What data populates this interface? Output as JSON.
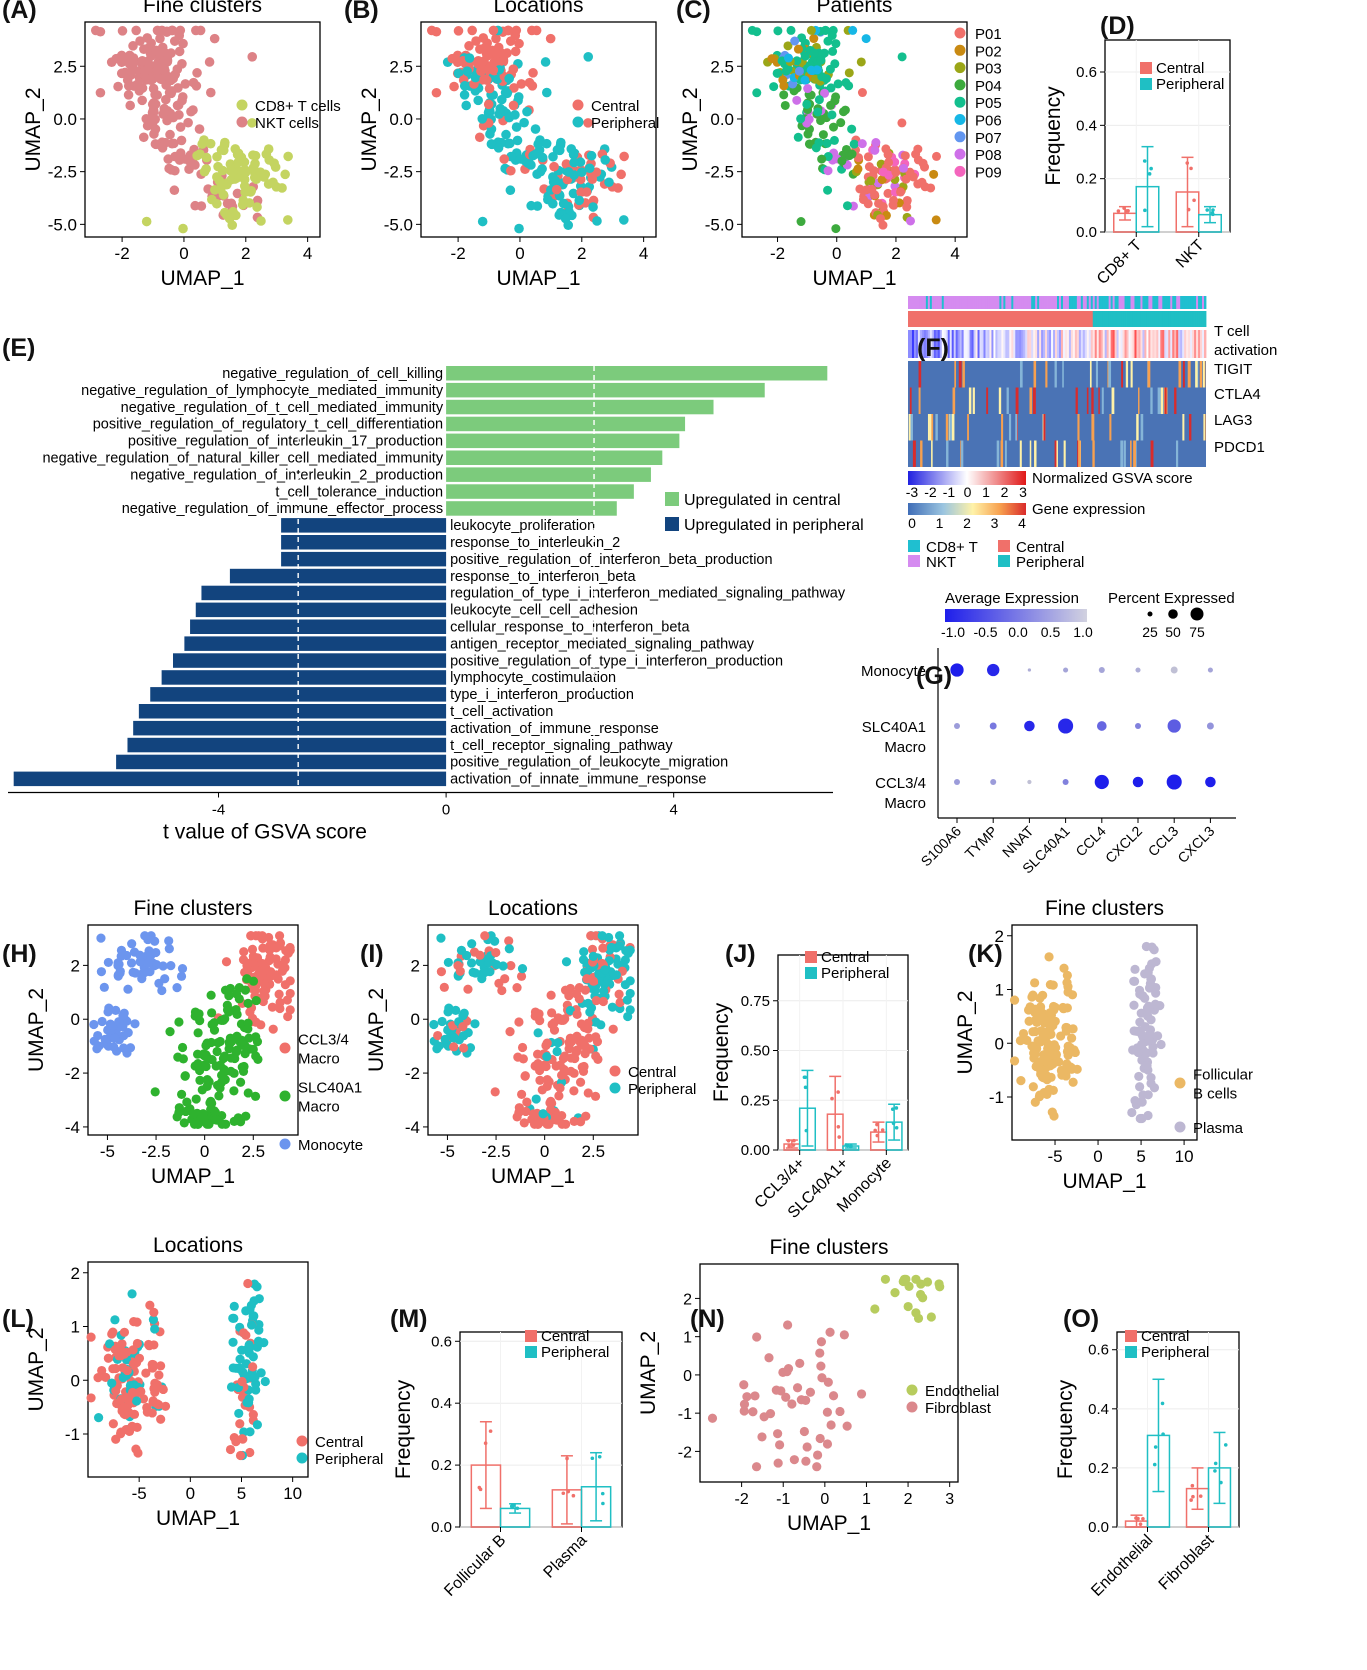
{
  "colors": {
    "central": "#F0706A",
    "peripheral": "#1FBFC4",
    "up_central": "#7CCB7C",
    "up_peripheral": "#12447E",
    "cd8": "#C4D461",
    "nkt": "#DD8286",
    "endo": "#B7CC5E",
    "fibro": "#DB888C",
    "follicular": "#EBB864",
    "plasma": "#BDB7D2",
    "ccl34": "#F0706A",
    "slc": "#2EB22E",
    "mono": "#6C95EE",
    "patients": [
      "#F0706A",
      "#C98A12",
      "#9BA617",
      "#3DAA3E",
      "#13BF8E",
      "#16B7E6",
      "#6296F0",
      "#CE70E9",
      "#F465BD"
    ]
  },
  "panel_labels": {
    "A": "(A)",
    "B": "(B)",
    "C": "(C)",
    "D": "(D)",
    "E": "(E)",
    "F": "(F)",
    "G": "(G)",
    "H": "(H)",
    "I": "(I)",
    "J": "(J)",
    "K": "(K)",
    "L": "(L)",
    "M": "(M)",
    "N": "(N)",
    "O": "(O)"
  },
  "chart_data": [
    {
      "panel": "A",
      "type": "scatter",
      "title": "Fine clusters",
      "xlabel": "UMAP_1",
      "ylabel": "UMAP_2",
      "xlim": [
        -3.2,
        4.4
      ],
      "ylim": [
        -5.6,
        4.6
      ],
      "xticks": [
        -2,
        0,
        2,
        4
      ],
      "yticks": [
        2.5,
        0.0,
        -2.5,
        -5.0
      ],
      "series": [
        {
          "name": "CD8+ T cells",
          "color_key": "cd8"
        },
        {
          "name": "NKT cells",
          "color_key": "nkt"
        }
      ],
      "legend": [
        "CD8+ T cells",
        "NKT cells"
      ]
    },
    {
      "panel": "B",
      "type": "scatter",
      "title": "Locations",
      "xlabel": "UMAP_1",
      "ylabel": "UMAP_2",
      "xlim": [
        -3.2,
        4.4
      ],
      "ylim": [
        -5.6,
        4.6
      ],
      "xticks": [
        -2,
        0,
        2,
        4
      ],
      "yticks": [
        2.5,
        0.0,
        -2.5,
        -5.0
      ],
      "legend": [
        "Central",
        "Peripheral"
      ]
    },
    {
      "panel": "C",
      "type": "scatter",
      "title": "Patients",
      "xlabel": "UMAP_1",
      "ylabel": "UMAP_2",
      "xlim": [
        -3.2,
        4.4
      ],
      "ylim": [
        -5.6,
        4.6
      ],
      "xticks": [
        -2,
        0,
        2,
        4
      ],
      "yticks": [
        2.5,
        0.0,
        -2.5,
        -5.0
      ],
      "legend": [
        "P01",
        "P02",
        "P03",
        "P04",
        "P05",
        "P06",
        "P07",
        "P08",
        "P09"
      ]
    },
    {
      "panel": "D",
      "type": "bar",
      "ylabel": "Frequency",
      "ylim": [
        0,
        0.72
      ],
      "yticks": [
        0.0,
        0.2,
        0.4,
        0.6
      ],
      "categories": [
        "CD8+ T",
        "NKT"
      ],
      "legend": [
        "Central",
        "Peripheral"
      ],
      "series": [
        {
          "name": "Central",
          "values": [
            0.07,
            0.15
          ],
          "err": [
            0.025,
            0.13
          ]
        },
        {
          "name": "Peripheral",
          "values": [
            0.17,
            0.065
          ],
          "err": [
            0.15,
            0.03
          ]
        }
      ]
    },
    {
      "panel": "E",
      "type": "bar",
      "orientation": "horizontal",
      "xlabel": "t value of GSVA score",
      "xlim": [
        -7.7,
        6.8
      ],
      "xticks": [
        -4,
        0,
        4
      ],
      "threshold": 2.6,
      "legend": [
        "Upregulated in central",
        "Upregulated in peripheral"
      ],
      "bars": [
        {
          "label": "negative_regulation_of_cell_killing",
          "value": 6.7
        },
        {
          "label": "negative_regulation_of_lymphocyte_mediated_immunity",
          "value": 5.6
        },
        {
          "label": "negative_regulation_of_t_cell_mediated_immunity",
          "value": 4.7
        },
        {
          "label": "positive_regulation_of_regulatory_t_cell_differentiation",
          "value": 4.2
        },
        {
          "label": "positive_regulation_of_interleukin_17_production",
          "value": 4.1
        },
        {
          "label": "negative_regulation_of_natural_killer_cell_mediated_immunity",
          "value": 3.8
        },
        {
          "label": "negative_regulation_of_interleukin_2_production",
          "value": 3.6
        },
        {
          "label": "t_cell_tolerance_induction",
          "value": 3.3
        },
        {
          "label": "negative_regulation_of_immune_effector_process",
          "value": 3.0
        },
        {
          "label": "leukocyte_proliferation",
          "value": -2.9
        },
        {
          "label": "response_to_interleukin_2",
          "value": -2.9
        },
        {
          "label": "positive_regulation_of_interferon_beta_production",
          "value": -2.9
        },
        {
          "label": "response_to_interferon_beta",
          "value": -3.8
        },
        {
          "label": "regulation_of_type_i_interferon_mediated_signaling_pathway",
          "value": -4.3
        },
        {
          "label": "leukocyte_cell_cell_adhesion",
          "value": -4.4
        },
        {
          "label": "cellular_response_to_interferon_beta",
          "value": -4.5
        },
        {
          "label": "antigen_receptor_mediated_signaling_pathway",
          "value": -4.6
        },
        {
          "label": "positive_regulation_of_type_i_interferon_production",
          "value": -4.8
        },
        {
          "label": "lymphocyte_costimulation",
          "value": -5.0
        },
        {
          "label": "type_i_interferon_production",
          "value": -5.2
        },
        {
          "label": "t_cell_activation",
          "value": -5.4
        },
        {
          "label": "activation_of_immune_response",
          "value": -5.5
        },
        {
          "label": "t_cell_receptor_signaling_pathway",
          "value": -5.6
        },
        {
          "label": "positive_regulation_of_leukocyte_migration",
          "value": -5.8
        },
        {
          "label": "activation_of_innate_immune_response",
          "value": -7.6
        }
      ]
    },
    {
      "panel": "F",
      "type": "heatmap",
      "rows": [
        "T cell\nactivation",
        "TIGIT",
        "CTLA4",
        "LAG3",
        "PDCD1"
      ],
      "legend_gsva": {
        "title": "Normalized GSVA score",
        "ticks": [
          "-3",
          "-2",
          "-1",
          "0",
          "1",
          "2",
          "3"
        ]
      },
      "legend_expr": {
        "title": "Gene expression",
        "ticks": [
          "0",
          "1",
          "2",
          "3",
          "4"
        ]
      },
      "legend_cells": [
        "CD8+ T",
        "NKT"
      ],
      "legend_loc": [
        "Central",
        "Peripheral"
      ]
    },
    {
      "panel": "G",
      "type": "scatter",
      "genes": [
        "S100A6",
        "TYMP",
        "NNAT",
        "SLC40A1",
        "CCL4",
        "CXCL2",
        "CCL3",
        "CXCL3"
      ],
      "groups": [
        "Monocyte",
        "SLC40A1\nMacro",
        "CCL3/4\nMacro"
      ],
      "legend_expr": {
        "title": "Average Expression",
        "ticks": [
          "-1.0",
          "-0.5",
          "0.0",
          "0.5",
          "1.0"
        ]
      },
      "legend_pct": {
        "title": "Percent Expressed",
        "ticks": [
          "25",
          "50",
          "75"
        ]
      },
      "avg_expression": [
        [
          -1.0,
          -0.9,
          0.6,
          0.5,
          0.5,
          0.6,
          0.8,
          0.5
        ],
        [
          0.4,
          0.0,
          -0.9,
          -0.9,
          -0.2,
          0.1,
          -0.3,
          0.3
        ],
        [
          0.4,
          0.4,
          0.8,
          0.1,
          -1.0,
          -1.0,
          -1.0,
          -1.0
        ]
      ],
      "pct_expressed": [
        [
          60,
          55,
          5,
          15,
          20,
          15,
          25,
          15
        ],
        [
          20,
          25,
          45,
          70,
          40,
          20,
          60,
          25
        ],
        [
          20,
          20,
          10,
          20,
          65,
          45,
          70,
          45
        ]
      ]
    },
    {
      "panel": "H",
      "type": "scatter",
      "title": "Fine clusters",
      "xlabel": "UMAP_1",
      "ylabel": "UMAP_2",
      "xlim": [
        -6,
        4.8
      ],
      "ylim": [
        -4.3,
        3.5
      ],
      "xticks": [
        -5.0,
        -2.5,
        0.0,
        2.5
      ],
      "yticks": [
        2,
        0,
        -2,
        -4
      ],
      "legend": [
        "CCL3/4\nMacro",
        "SLC40A1\nMacro",
        "Monocyte"
      ]
    },
    {
      "panel": "I",
      "type": "scatter",
      "title": "Locations",
      "xlabel": "UMAP_1",
      "ylabel": "UMAP_2",
      "xlim": [
        -6,
        4.8
      ],
      "ylim": [
        -4.3,
        3.5
      ],
      "xticks": [
        -5.0,
        -2.5,
        0.0,
        2.5
      ],
      "yticks": [
        2,
        0,
        -2,
        -4
      ],
      "legend": [
        "Central",
        "Peripheral"
      ]
    },
    {
      "panel": "J",
      "type": "bar",
      "ylabel": "Frequency",
      "ylim": [
        0,
        0.98
      ],
      "yticks": [
        0.0,
        0.25,
        0.5,
        0.75
      ],
      "ytick_labels": [
        "0.00",
        "0.25",
        "0.50",
        "0.75"
      ],
      "categories": [
        "CCL3/4+",
        "SLC40A1+",
        "Monocyte"
      ],
      "legend": [
        "Central",
        "Peripheral"
      ],
      "series": [
        {
          "name": "Central",
          "values": [
            0.03,
            0.18,
            0.09
          ],
          "err": [
            0.02,
            0.19,
            0.05
          ]
        },
        {
          "name": "Peripheral",
          "values": [
            0.21,
            0.02,
            0.14
          ],
          "err": [
            0.19,
            0.01,
            0.09
          ]
        }
      ]
    },
    {
      "panel": "K",
      "type": "scatter",
      "title": "Fine clusters",
      "xlabel": "UMAP_1",
      "ylabel": "UMAP_2",
      "xlim": [
        -10,
        11.5
      ],
      "ylim": [
        -1.8,
        2.2
      ],
      "xticks": [
        -5,
        0,
        5,
        10
      ],
      "yticks": [
        2,
        1,
        0,
        -1
      ],
      "legend": [
        "Follicular\nB cells",
        "Plasma"
      ]
    },
    {
      "panel": "L",
      "type": "scatter",
      "title": "Locations",
      "xlabel": "UMAP_1",
      "ylabel": "UMAP_2",
      "xlim": [
        -10,
        11.5
      ],
      "ylim": [
        -1.8,
        2.2
      ],
      "xticks": [
        -5,
        0,
        5,
        10
      ],
      "yticks": [
        2,
        1,
        0,
        -1
      ],
      "legend": [
        "Central",
        "Peripheral"
      ]
    },
    {
      "panel": "M",
      "type": "bar",
      "ylabel": "Frequency",
      "ylim": [
        0,
        0.63
      ],
      "yticks": [
        0.0,
        0.2,
        0.4,
        0.6
      ],
      "categories": [
        "Follicular B",
        "Plasma"
      ],
      "legend": [
        "Central",
        "Peripheral"
      ],
      "series": [
        {
          "name": "Central",
          "values": [
            0.2,
            0.12
          ],
          "err": [
            0.14,
            0.11
          ]
        },
        {
          "name": "Peripheral",
          "values": [
            0.06,
            0.13
          ],
          "err": [
            0.015,
            0.11
          ]
        }
      ]
    },
    {
      "panel": "N",
      "type": "scatter",
      "title": "Fine clusters",
      "xlabel": "UMAP_1",
      "ylabel": "UMAP_2",
      "xlim": [
        -3,
        3.2
      ],
      "ylim": [
        -2.8,
        2.9
      ],
      "xticks": [
        -2,
        -1,
        0,
        1,
        2,
        3
      ],
      "yticks": [
        2,
        1,
        0,
        -1,
        -2
      ],
      "legend": [
        "Endothelial",
        "Fibroblast"
      ]
    },
    {
      "panel": "O",
      "type": "bar",
      "ylabel": "Frequency",
      "ylim": [
        0,
        0.66
      ],
      "yticks": [
        0.0,
        0.2,
        0.4,
        0.6
      ],
      "categories": [
        "Endothelial",
        "Fibroblast"
      ],
      "legend": [
        "Central",
        "Peripheral"
      ],
      "series": [
        {
          "name": "Central",
          "values": [
            0.02,
            0.13
          ],
          "err": [
            0.02,
            0.07
          ]
        },
        {
          "name": "Peripheral",
          "values": [
            0.31,
            0.2
          ],
          "err": [
            0.19,
            0.12
          ]
        }
      ]
    }
  ]
}
